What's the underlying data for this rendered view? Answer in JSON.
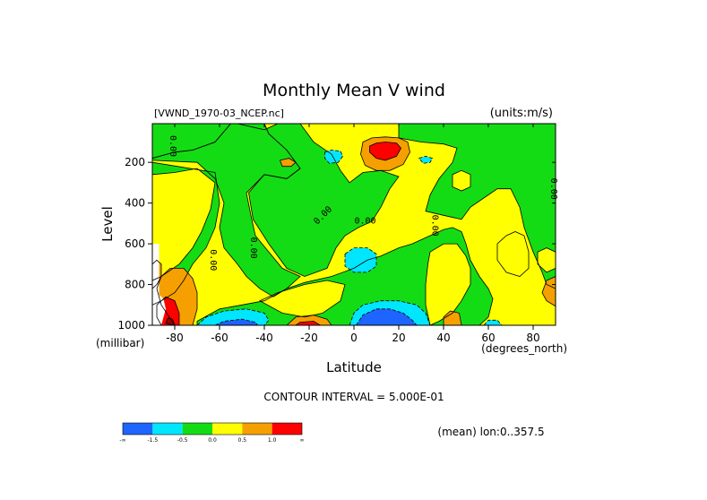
{
  "chart_data": {
    "type": "heatmap",
    "title": "Monthly Mean V wind",
    "file_label": "[VWND_1970-03_NCEP.nc]",
    "units_label": "(units:m/s)",
    "xlabel": "Latitude",
    "xunits": "(degrees_north)",
    "ylabel": "Level",
    "yunits": "(millibar)",
    "x_range": [
      -90,
      90
    ],
    "y_range": [
      1000,
      10
    ],
    "x_ticks": [
      -80,
      -60,
      -40,
      -20,
      0,
      20,
      40,
      60,
      80
    ],
    "x_tick_labels": [
      "-80",
      "-60",
      "-40",
      "-20",
      "0",
      "20",
      "40",
      "60",
      "80"
    ],
    "y_ticks": [
      200,
      400,
      600,
      800,
      1000
    ],
    "y_tick_labels": [
      "200",
      "400",
      "600",
      "800",
      "1000"
    ],
    "contour_interval_text": "CONTOUR INTERVAL = 5.000E-01",
    "mean_note": "(mean) lon:0..357.5",
    "contour_labels": [
      {
        "text": "0.00",
        "lat": -82,
        "lev": 120
      },
      {
        "text": "0.00",
        "lat": 88,
        "lev": 330
      },
      {
        "text": "0.00",
        "lat": -13,
        "lev": 470
      },
      {
        "text": "0.00",
        "lat": 5,
        "lev": 500
      },
      {
        "text": "0.00",
        "lat": 35,
        "lev": 510
      },
      {
        "text": "0.00",
        "lat": -46,
        "lev": 620
      },
      {
        "text": "0.00",
        "lat": -64,
        "lev": 680
      }
    ],
    "colorbar": {
      "colors": [
        "#1e64ff",
        "#00e6ff",
        "#14dc14",
        "#ffff00",
        "#f5a000",
        "#ff0000"
      ],
      "labels": [
        "-∞",
        "-1.5",
        "-0.5",
        "0.0",
        "0.5",
        "1.0",
        "∞"
      ]
    },
    "bands": {
      "blue": "#1e64ff",
      "cyan": "#00e6ff",
      "green": "#14dc14",
      "yellow": "#ffff00",
      "orange": "#f5a000",
      "red": "#ff0000",
      "darkred": "#a00000",
      "white": "#ffffff"
    }
  }
}
